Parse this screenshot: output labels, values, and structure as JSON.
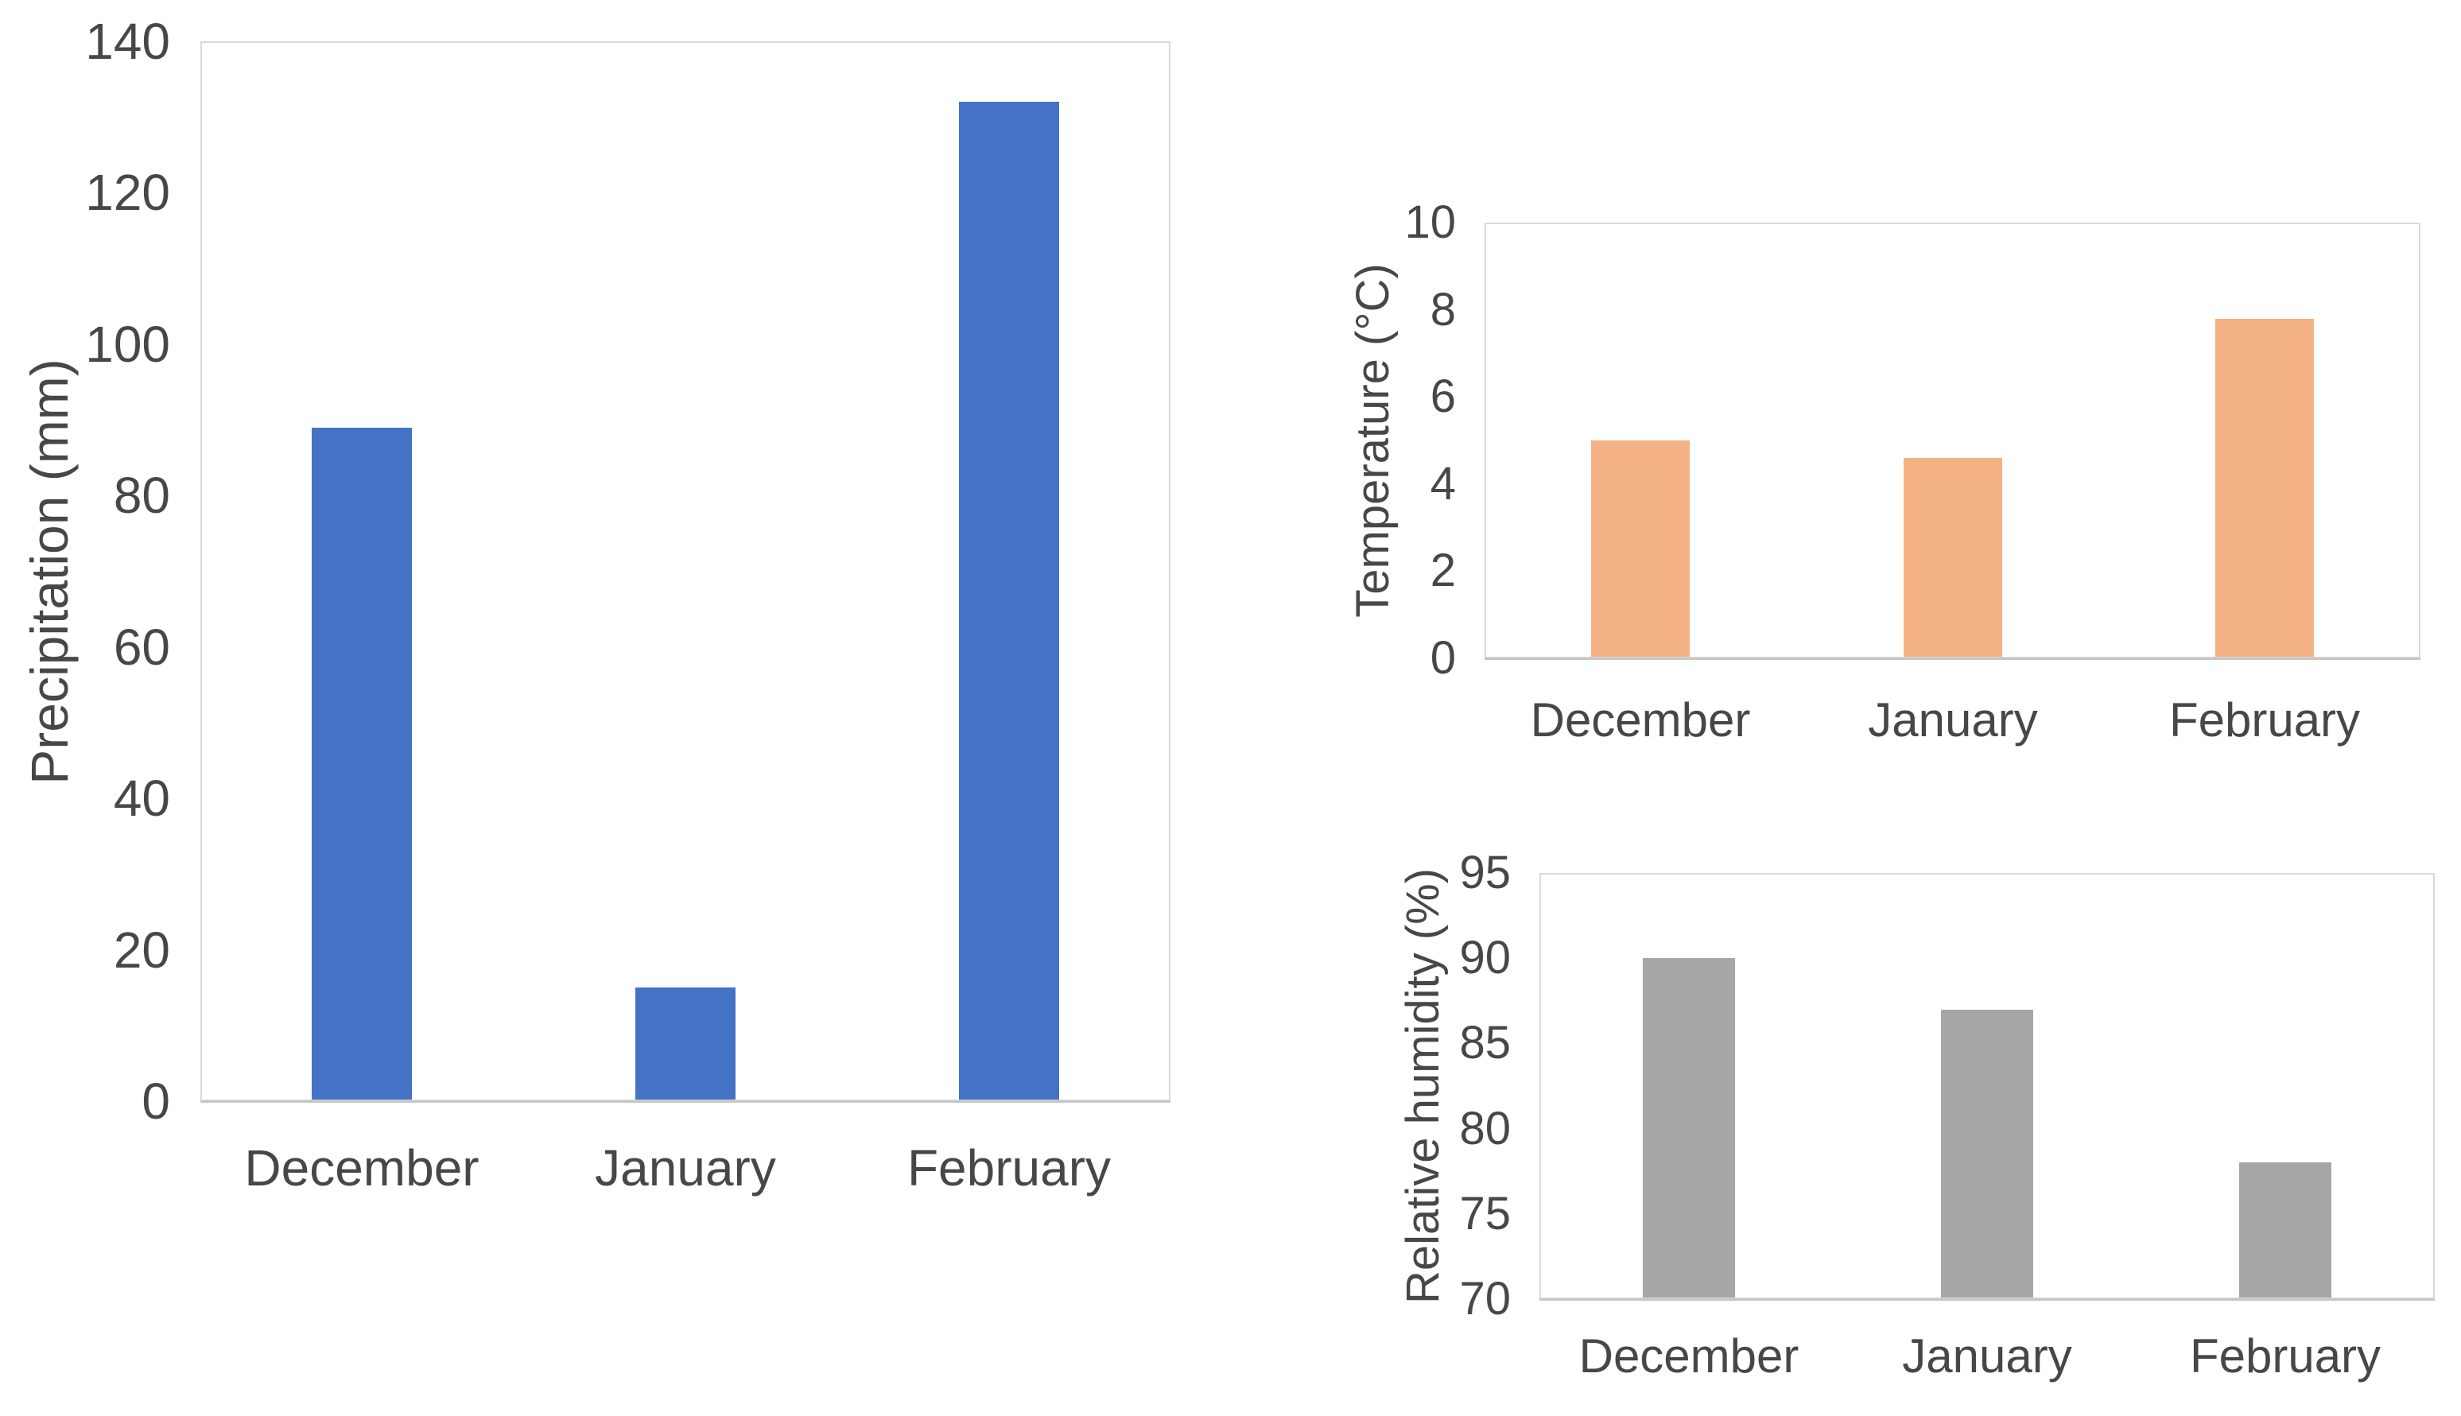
{
  "colors": {
    "precipitation_bar": "#4472C4",
    "temperature_bar": "#F4B183",
    "humidity_bar": "#A6A6A6",
    "axis_text": "#474747",
    "plot_border": "#D9D9D9",
    "axis_line": "#C6C6C6"
  },
  "chart_data": [
    {
      "type": "bar",
      "title": "",
      "xlabel": "",
      "ylabel": "Precipitation (mm)",
      "categories": [
        "December",
        "January",
        "February"
      ],
      "values": [
        89,
        15,
        132
      ],
      "yticks": [
        0,
        20,
        40,
        60,
        80,
        100,
        120,
        140
      ],
      "ylim": [
        0,
        140
      ],
      "bar_color": "#4472C4",
      "grid": false,
      "legend_position": "none"
    },
    {
      "type": "bar",
      "title": "",
      "xlabel": "",
      "ylabel": "Temperature (°C)",
      "categories": [
        "December",
        "January",
        "February"
      ],
      "values": [
        5.0,
        4.6,
        7.8
      ],
      "yticks": [
        0,
        2,
        4,
        6,
        8,
        10
      ],
      "ylim": [
        0,
        10
      ],
      "bar_color": "#F4B183",
      "grid": false,
      "legend_position": "none"
    },
    {
      "type": "bar",
      "title": "",
      "xlabel": "",
      "ylabel": "Relative humidity (%)",
      "categories": [
        "December",
        "January",
        "February"
      ],
      "values": [
        90,
        87,
        78
      ],
      "yticks": [
        70,
        75,
        80,
        85,
        90,
        95
      ],
      "ylim": [
        70,
        95
      ],
      "bar_color": "#A6A6A6",
      "grid": false,
      "legend_position": "none"
    }
  ]
}
